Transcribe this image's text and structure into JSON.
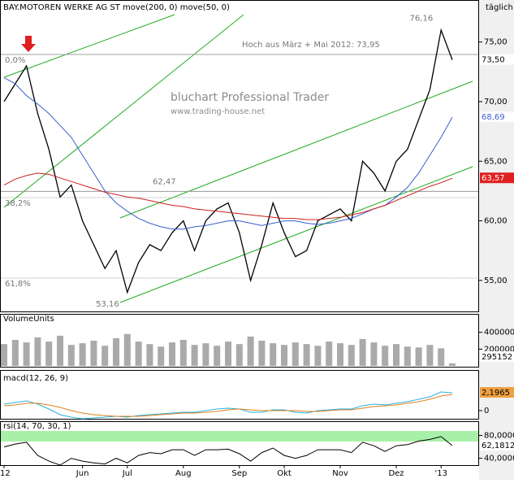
{
  "chart_data": {
    "type": "line",
    "title": "BAY.MOTOREN WERKE AG ST move(200, 0) move(50, 0)",
    "interval": "täglich",
    "watermark": "bluchart Professional Trader",
    "watermark_url": "www.trading-house.net",
    "categories": [
      "'12",
      null,
      null,
      null,
      null,
      null,
      null,
      "Jun",
      null,
      null,
      null,
      "Jul",
      null,
      null,
      null,
      null,
      "Aug",
      null,
      null,
      null,
      null,
      "Sep",
      null,
      null,
      null,
      "Okt",
      null,
      null,
      null,
      null,
      "Nov",
      null,
      null,
      null,
      null,
      "Dez",
      null,
      null,
      null,
      "'13",
      null
    ],
    "ylim": [
      52.4,
      77.5
    ],
    "yticks": [
      {
        "value": 55,
        "label": "55,00"
      },
      {
        "value": 60,
        "label": "60,00"
      },
      {
        "value": 65,
        "label": "65,00"
      },
      {
        "value": 70,
        "label": "70,00"
      },
      {
        "value": 75,
        "label": "75,00"
      }
    ],
    "series": [
      {
        "name": "Close",
        "color": "#000000",
        "last_label": "73,50",
        "values": [
          70,
          71.5,
          73,
          69,
          66,
          62,
          63,
          60,
          58,
          56,
          57.5,
          54,
          56.5,
          58,
          57.5,
          59,
          60,
          57.5,
          60,
          61,
          61.5,
          59,
          55,
          58,
          61.5,
          59,
          57,
          57.5,
          60,
          60.5,
          61,
          60,
          65,
          64,
          62.5,
          65,
          66,
          68.5,
          71,
          76,
          73.5
        ]
      },
      {
        "name": "move(50, 0)",
        "color": "#3a5fcd",
        "last_label": "68,69",
        "values": [
          72,
          71.5,
          70.5,
          69.8,
          69,
          68,
          67,
          65.5,
          64,
          62.5,
          61.5,
          60.8,
          60.2,
          59.8,
          59.5,
          59.3,
          59.3,
          59.5,
          59.6,
          59.8,
          60,
          60,
          59.8,
          59.6,
          59.8,
          60,
          60,
          59.8,
          59.7,
          59.8,
          60,
          60.2,
          60.6,
          61,
          61.3,
          62,
          62.8,
          64,
          65.5,
          67,
          68.69
        ]
      },
      {
        "name": "move(200, 0)",
        "color": "#cc2020",
        "last_label": "63,57",
        "values": [
          63,
          63.5,
          63.8,
          64,
          63.9,
          63.6,
          63.3,
          63,
          62.7,
          62.4,
          62.2,
          62,
          61.9,
          61.7,
          61.5,
          61.3,
          61.2,
          61,
          60.9,
          60.8,
          60.7,
          60.6,
          60.5,
          60.4,
          60.3,
          60.2,
          60.2,
          60.1,
          60.1,
          60.2,
          60.3,
          60.5,
          60.7,
          61,
          61.3,
          61.7,
          62.1,
          62.5,
          62.9,
          63.2,
          63.57
        ]
      }
    ],
    "hlines": [
      {
        "value": 73.95,
        "label": "Hoch aus März + Mai 2012: 73,95"
      },
      {
        "value": 62.47,
        "label": "62,47"
      }
    ],
    "fib_levels": [
      {
        "value": 73.95,
        "label": "0,0%"
      },
      {
        "value": 61.95,
        "label": "38,2%"
      },
      {
        "value": 55.2,
        "label": "61,8%"
      }
    ],
    "point_labels": [
      {
        "index": 11,
        "value": 53.16,
        "label": "53,16"
      },
      {
        "index": 39,
        "value": 76.16,
        "label": "76,16"
      }
    ],
    "volume": {
      "title": "VolumeUnits",
      "ylim": [
        0,
        6200000
      ],
      "yticks": [
        2000000,
        4000000
      ],
      "last_label": "295152",
      "values": [
        2600000,
        3100000,
        2800000,
        3400000,
        2900000,
        3600000,
        2500000,
        2700000,
        3000000,
        2400000,
        3300000,
        3800000,
        2900000,
        2600000,
        2300000,
        2800000,
        3100000,
        2500000,
        2700000,
        2400000,
        2900000,
        2600000,
        3500000,
        3000000,
        2700000,
        2500000,
        2800000,
        2600000,
        2400000,
        2900000,
        2700000,
        2500000,
        3200000,
        2800000,
        2400000,
        2600000,
        2300000,
        2200000,
        2500000,
        2100000,
        295152
      ]
    },
    "macd": {
      "title": "macd(12, 26, 9)",
      "ylim": [
        -1,
        5
      ],
      "yticks": [
        0
      ],
      "last_label": "2,1965",
      "series": [
        {
          "name": "macd",
          "color": "#2ab0e0",
          "values": [
            0.8,
            1,
            1.2,
            0.8,
            0.2,
            -0.5,
            -0.8,
            -1,
            -0.9,
            -0.8,
            -0.7,
            -0.8,
            -0.6,
            -0.5,
            -0.4,
            -0.3,
            -0.2,
            -0.2,
            0,
            0.2,
            0.3,
            0.2,
            -0.2,
            -0.2,
            0.1,
            0.1,
            -0.2,
            -0.3,
            0,
            0.1,
            0.2,
            0.2,
            0.6,
            0.8,
            0.7,
            0.9,
            1.1,
            1.4,
            1.7,
            2.3,
            2.1965
          ]
        },
        {
          "name": "signal",
          "color": "#e08020",
          "values": [
            0.6,
            0.7,
            0.9,
            0.9,
            0.7,
            0.4,
            0,
            -0.3,
            -0.5,
            -0.6,
            -0.7,
            -0.7,
            -0.7,
            -0.6,
            -0.5,
            -0.4,
            -0.3,
            -0.3,
            -0.2,
            -0.1,
            0.1,
            0.2,
            0.1,
            0,
            0,
            0,
            0,
            -0.1,
            -0.1,
            0,
            0.1,
            0.1,
            0.3,
            0.5,
            0.6,
            0.7,
            0.9,
            1.1,
            1.4,
            1.8,
            2
          ]
        }
      ]
    },
    "rsi": {
      "title": "rsi(14, 70, 30, 1)",
      "ylim": [
        28,
        105
      ],
      "yticks": [
        {
          "value": 40,
          "label": "40,0000"
        },
        {
          "value": 80,
          "label": "80,0000"
        }
      ],
      "last_label": "62,1812",
      "values": [
        60,
        65,
        68,
        45,
        35,
        28,
        40,
        35,
        32,
        30,
        40,
        32,
        45,
        50,
        48,
        55,
        55,
        45,
        55,
        55,
        56,
        48,
        35,
        50,
        58,
        45,
        40,
        45,
        55,
        55,
        55,
        50,
        68,
        62,
        52,
        62,
        64,
        70,
        73,
        78,
        62.1812
      ]
    }
  }
}
